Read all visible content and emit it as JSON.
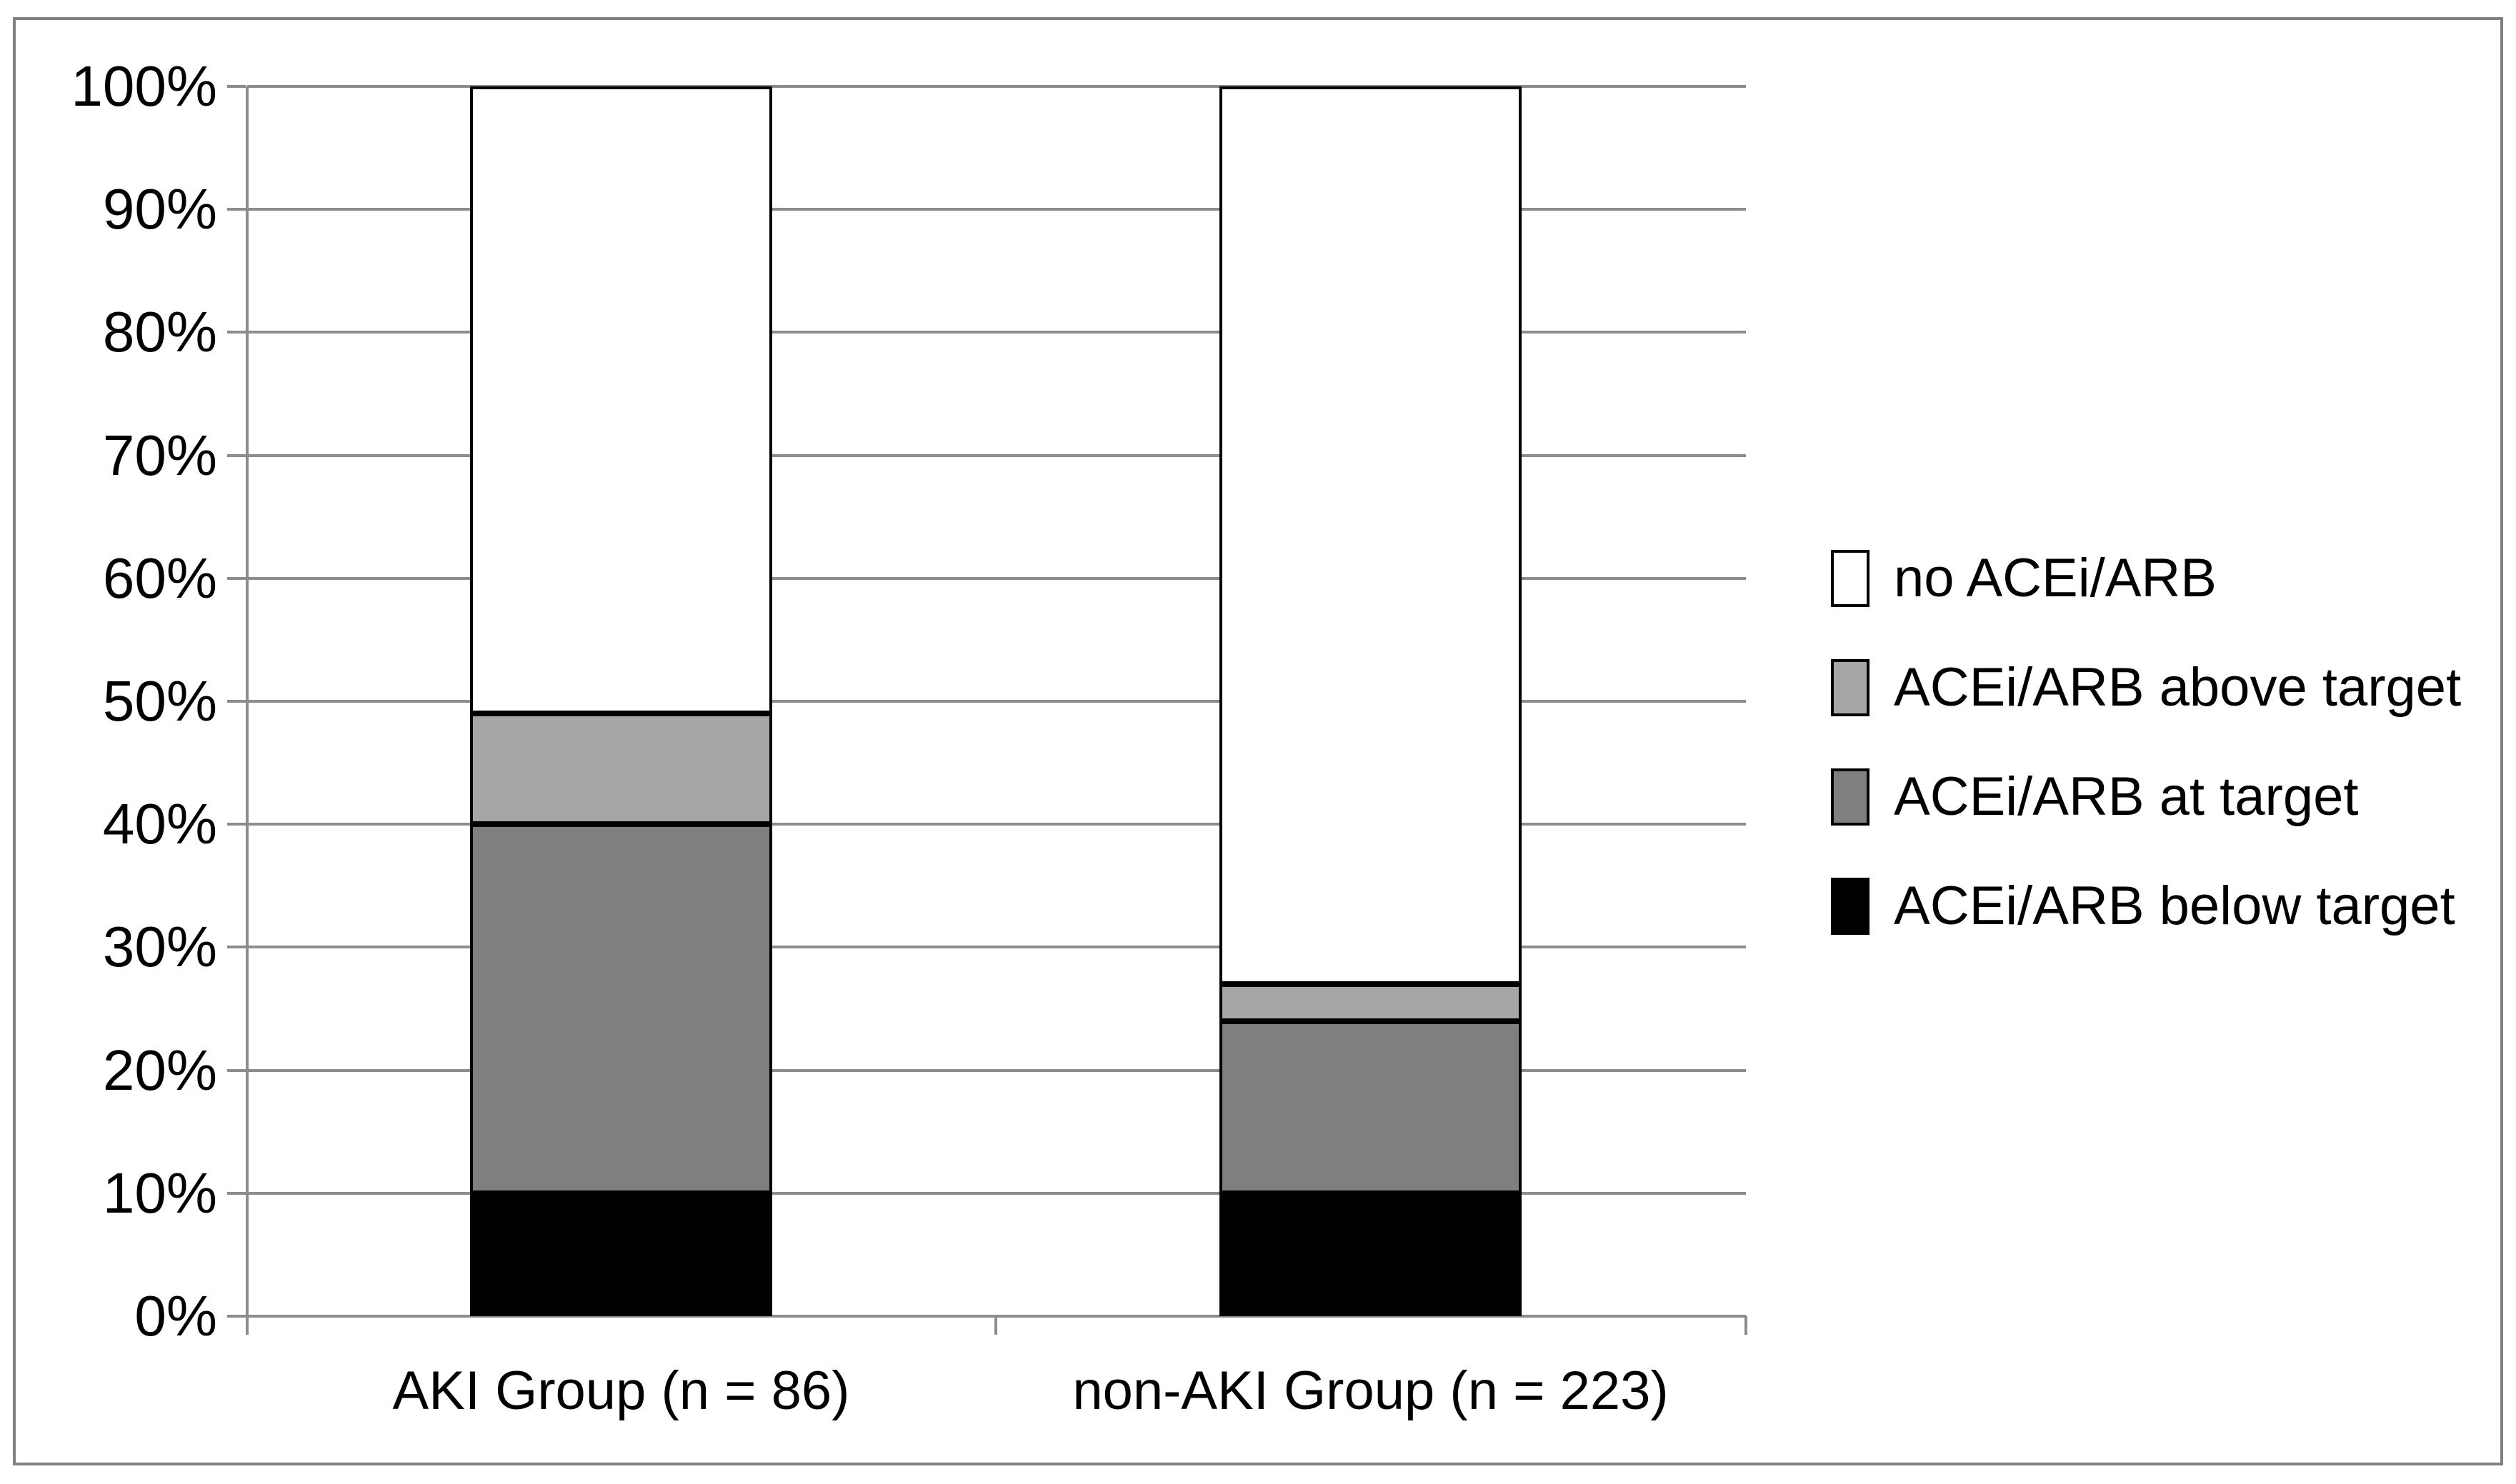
{
  "figure": {
    "border_color": "#808080",
    "background_color": "#ffffff"
  },
  "axes": {
    "grid_color": "#8c8c8c",
    "axis_color": "#8c8c8c",
    "text_color": "#000000"
  },
  "chart_data": {
    "type": "bar",
    "stacked": true,
    "title": "",
    "xlabel": "",
    "ylabel": "",
    "ylim": [
      0,
      100
    ],
    "ytick_step": 10,
    "grid": true,
    "legend_position": "right",
    "ytick_labels": [
      "0%",
      "10%",
      "20%",
      "30%",
      "40%",
      "50%",
      "60%",
      "70%",
      "80%",
      "90%",
      "100%"
    ],
    "categories": [
      "AKI Group (n = 86)",
      "non-AKI Group (n = 223)"
    ],
    "series": [
      {
        "name": "ACEi/ARB below target",
        "color": "#000000",
        "values": [
          10,
          10
        ]
      },
      {
        "name": "ACEi/ARB at target",
        "color": "#7f7f7f",
        "values": [
          30,
          14
        ]
      },
      {
        "name": "ACEi/ARB above target",
        "color": "#a6a6a6",
        "values": [
          9,
          3
        ]
      },
      {
        "name": "no ACEi/ARB",
        "color": "#ffffff",
        "values": [
          51,
          73
        ]
      }
    ],
    "legend_order": [
      "no ACEi/ARB",
      "ACEi/ARB above target",
      "ACEi/ARB at target",
      "ACEi/ARB below target"
    ]
  }
}
